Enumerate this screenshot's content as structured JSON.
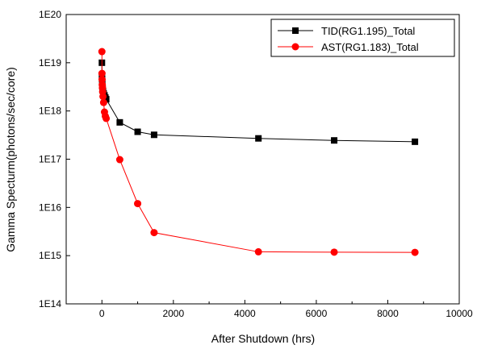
{
  "chart_data": {
    "type": "scatter",
    "xlabel": "After Shutdown (hrs)",
    "ylabel": "Gamma Specturm(photons/sec/core)",
    "xlim": [
      -1000,
      10000
    ],
    "ylim": [
      100000000000000.0,
      1e+20
    ],
    "y_scale": "log",
    "grid": false,
    "legend_position": "top-right",
    "x_ticks": [
      0,
      2000,
      4000,
      6000,
      8000,
      10000
    ],
    "x_tick_labels": [
      "0",
      "2000",
      "4000",
      "6000",
      "8000",
      "10000"
    ],
    "y_ticks": [
      100000000000000.0,
      1000000000000000.0,
      1e+16,
      1e+17,
      1e+18,
      1e+19,
      1e+20
    ],
    "y_tick_labels": [
      "1E14",
      "1E15",
      "1E16",
      "1E17",
      "1E18",
      "1E19",
      "1E20"
    ],
    "series": [
      {
        "name": "TID(RG1.195)_Total",
        "color": "#000000",
        "marker": "square",
        "points": [
          [
            0,
            1e+19
          ],
          [
            2,
            5.5e+18
          ],
          [
            5,
            4.6e+18
          ],
          [
            10,
            3.8e+18
          ],
          [
            15,
            3.2e+18
          ],
          [
            20,
            2.9e+18
          ],
          [
            30,
            2.6e+18
          ],
          [
            48,
            2.3e+18
          ],
          [
            72,
            2.1e+18
          ],
          [
            96,
            1.9e+18
          ],
          [
            120,
            1.75e+18
          ],
          [
            500,
            5.8e+17
          ],
          [
            1000,
            3.7e+17
          ],
          [
            1460,
            3.2e+17
          ],
          [
            4380,
            2.7e+17
          ],
          [
            6500,
            2.45e+17
          ],
          [
            8760,
            2.3e+17
          ]
        ]
      },
      {
        "name": "AST(RG1.183)_Total",
        "color": "#ff0000",
        "marker": "circle",
        "points": [
          [
            0,
            1.7e+19
          ],
          [
            2,
            6e+18
          ],
          [
            5,
            4.5e+18
          ],
          [
            10,
            3.5e+18
          ],
          [
            15,
            3e+18
          ],
          [
            20,
            2.5e+18
          ],
          [
            30,
            2e+18
          ],
          [
            48,
            1.5e+18
          ],
          [
            72,
            9.5e+17
          ],
          [
            96,
            7.8e+17
          ],
          [
            120,
            7e+17
          ],
          [
            500,
            9.8e+16
          ],
          [
            1000,
            1.2e+16
          ],
          [
            1460,
            3000000000000000.0
          ],
          [
            4380,
            1200000000000000.0
          ],
          [
            6500,
            1180000000000000.0
          ],
          [
            8760,
            1170000000000000.0
          ]
        ]
      }
    ]
  }
}
